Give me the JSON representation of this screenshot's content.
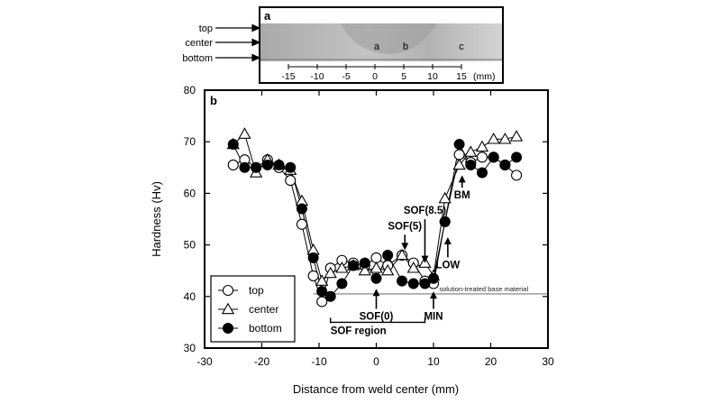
{
  "panel_a": {
    "label": "a",
    "row_labels": [
      "top",
      "center",
      "bottom"
    ],
    "zone_labels": [
      "a",
      "b",
      "c"
    ],
    "scale_ticks": [
      "-15",
      "-10",
      "-5",
      "0",
      "5",
      "10",
      "15"
    ],
    "scale_unit": "(mm)"
  },
  "chart_data": {
    "type": "line",
    "panel_label": "b",
    "xlabel": "Distance from weld center (mm)",
    "ylabel": "Hardness (Hv)",
    "xlim": [
      -30,
      30
    ],
    "ylim": [
      30,
      80
    ],
    "xticks": [
      -30,
      -20,
      -10,
      0,
      10,
      20,
      30
    ],
    "yticks": [
      30,
      40,
      50,
      60,
      70,
      80
    ],
    "grid": false,
    "legend_position": "bottom-left",
    "reference_line": {
      "y": 40.5,
      "label": "solution-treated base material"
    },
    "series": [
      {
        "name": "top",
        "marker": "open-circle",
        "x": [
          -25,
          -23,
          -21,
          -19,
          -17,
          -15,
          -13,
          -11,
          -9.5,
          -8,
          -6,
          -4,
          -2,
          0,
          2,
          4.5,
          6.5,
          8.5,
          10,
          12,
          14.5,
          16.5,
          18.5,
          20.5,
          22.5,
          24.5
        ],
        "y": [
          65.5,
          66.5,
          65.0,
          66.5,
          65.0,
          62.5,
          54.0,
          44.0,
          39.0,
          45.5,
          47.0,
          46.5,
          46.0,
          47.5,
          46.0,
          48.0,
          46.5,
          43.0,
          42.5,
          54.5,
          67.5,
          66.0,
          67.0,
          67.0,
          65.5,
          63.5
        ]
      },
      {
        "name": "center",
        "marker": "open-triangle",
        "x": [
          -25,
          -23,
          -21,
          -19,
          -17,
          -15,
          -13,
          -11,
          -9.5,
          -8,
          -6,
          -4,
          -2,
          0,
          2,
          4.5,
          6.5,
          8.5,
          10,
          12,
          14.5,
          16.5,
          18.5,
          20.5,
          22.5,
          24.5
        ],
        "y": [
          69.5,
          71.5,
          64.0,
          66.5,
          65.5,
          64.5,
          58.5,
          49.0,
          43.0,
          44.5,
          45.5,
          46.0,
          45.0,
          45.5,
          45.0,
          48.0,
          45.5,
          46.5,
          44.0,
          59.0,
          65.5,
          68.0,
          69.0,
          70.5,
          70.5,
          71.0
        ]
      },
      {
        "name": "bottom",
        "marker": "filled-circle",
        "x": [
          -25,
          -23,
          -21,
          -19,
          -17,
          -15,
          -13,
          -11,
          -9.5,
          -8,
          -6,
          -4,
          -2,
          0,
          2,
          4.5,
          6.5,
          8.5,
          10,
          12,
          14.5,
          16.5,
          18.5,
          20.5,
          22.5,
          24.5
        ],
        "y": [
          69.5,
          65.0,
          65.0,
          65.5,
          65.5,
          65.0,
          57.0,
          47.5,
          41.0,
          40.0,
          42.5,
          46.0,
          46.5,
          43.5,
          48.0,
          43.0,
          42.5,
          42.5,
          43.5,
          54.5,
          69.5,
          65.5,
          64.0,
          67.0,
          65.5,
          67.0
        ]
      }
    ],
    "annotations": [
      {
        "text": "SOF(0)",
        "x": 0,
        "y": 35.5,
        "arrow_to": 41.5,
        "direction": "up"
      },
      {
        "text": "SOF(5)",
        "x": 5,
        "y": 52.5,
        "arrow_to": 49.0,
        "direction": "down"
      },
      {
        "text": "SOF(8.5)",
        "x": 8.5,
        "y": 55.5,
        "arrow_to": 46.5,
        "direction": "down"
      },
      {
        "text": "MIN",
        "x": 10,
        "y": 35.5,
        "arrow_to": 41.0,
        "direction": "up"
      },
      {
        "text": "LOW",
        "x": 12.5,
        "y": 45.5,
        "arrow_to": 51.5,
        "direction": "up"
      },
      {
        "text": "BM",
        "x": 15,
        "y": 59.0,
        "arrow_to": 63.5,
        "direction": "up"
      }
    ],
    "region": {
      "text": "SOF region",
      "x_start": -8,
      "x_end": 8.5,
      "y": 35.0
    }
  }
}
